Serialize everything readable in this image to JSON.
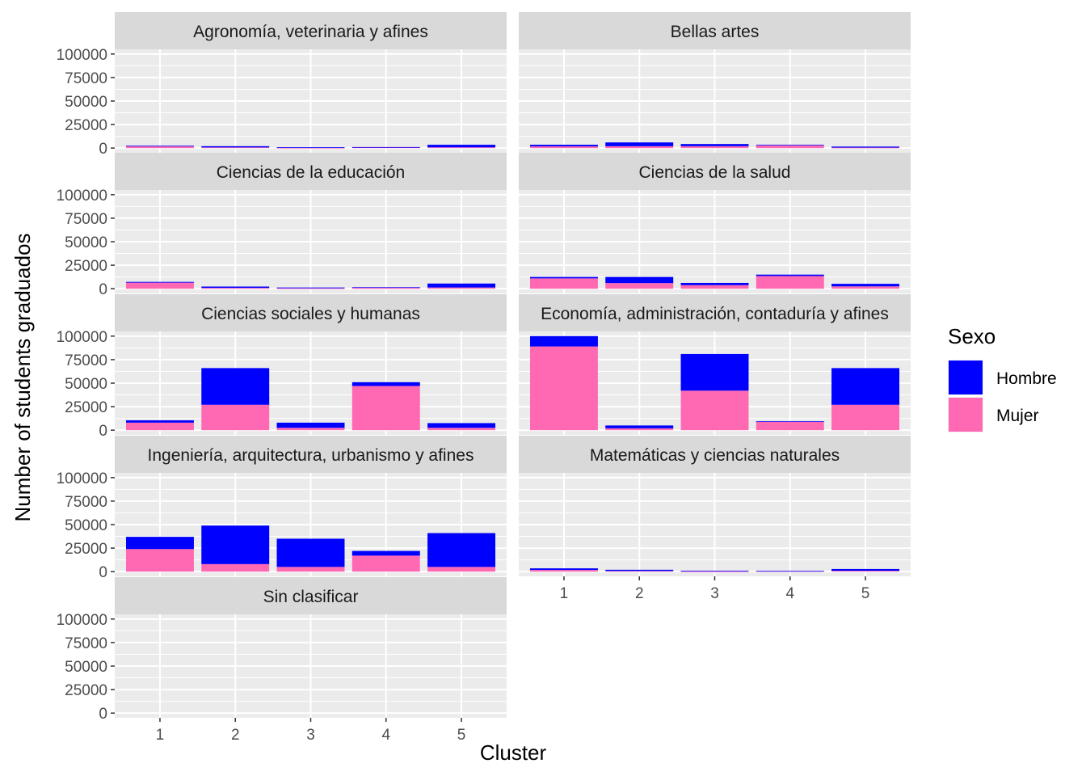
{
  "chart_data": {
    "type": "bar",
    "stacked": true,
    "facet": "wrap",
    "categories": [
      "1",
      "2",
      "3",
      "4",
      "5"
    ],
    "xlabel": "Cluster",
    "ylabel": "Number of students graduados",
    "ylim": [
      0,
      100000
    ],
    "yticks": [
      "0",
      "25000",
      "50000",
      "75000",
      "100000"
    ],
    "legend": {
      "title": "Sexo",
      "position": "right",
      "entries": [
        {
          "name": "Hombre",
          "color": "#0000FF"
        },
        {
          "name": "Mujer",
          "color": "#FF69B4"
        }
      ]
    },
    "colors": {
      "Hombre": "#0000FF",
      "Mujer": "#FF69B4",
      "panel": "#EBEBEB",
      "strip": "#D9D9D9",
      "grid": "#FFFFFF"
    },
    "panels": [
      {
        "title": "Agronomía, veterinaria y afines",
        "series": [
          {
            "name": "Mujer",
            "values": [
              2300,
              700,
              300,
              800,
              800
            ]
          },
          {
            "name": "Hombre",
            "values": [
              200,
              1300,
              700,
              300,
              2700
            ]
          }
        ]
      },
      {
        "title": "Bellas artes",
        "series": [
          {
            "name": "Mujer",
            "values": [
              1800,
              2000,
              2000,
              3000,
              500
            ]
          },
          {
            "name": "Hombre",
            "values": [
              1700,
              4000,
              2300,
              500,
              1100
            ]
          }
        ]
      },
      {
        "title": "Ciencias de la educación",
        "series": [
          {
            "name": "Mujer",
            "values": [
              6500,
              900,
              500,
              1300,
              1300
            ]
          },
          {
            "name": "Hombre",
            "values": [
              800,
              1400,
              800,
              300,
              4200
            ]
          }
        ]
      },
      {
        "title": "Ciencias de la salud",
        "series": [
          {
            "name": "Mujer",
            "values": [
              11000,
              6000,
              3800,
              13500,
              2500
            ]
          },
          {
            "name": "Hombre",
            "values": [
              1500,
              6500,
              2400,
              1500,
              2700
            ]
          }
        ]
      },
      {
        "title": "Ciencias sociales y humanas",
        "series": [
          {
            "name": "Mujer",
            "values": [
              8000,
              27000,
              2500,
              47000,
              2500
            ]
          },
          {
            "name": "Hombre",
            "values": [
              2500,
              39000,
              5500,
              4000,
              5000
            ]
          }
        ]
      },
      {
        "title": "Economía, administración, contaduría y afines",
        "series": [
          {
            "name": "Mujer",
            "values": [
              89000,
              2000,
              42000,
              9000,
              27000
            ]
          },
          {
            "name": "Hombre",
            "values": [
              11000,
              3000,
              39000,
              500,
              39000
            ]
          }
        ]
      },
      {
        "title": "Ingeniería, arquitectura, urbanismo y afines",
        "series": [
          {
            "name": "Mujer",
            "values": [
              24000,
              8000,
              5000,
              17000,
              5000
            ]
          },
          {
            "name": "Hombre",
            "values": [
              13000,
              41000,
              30000,
              5000,
              36000
            ]
          }
        ]
      },
      {
        "title": "Matemáticas y ciencias naturales",
        "series": [
          {
            "name": "Mujer",
            "values": [
              1800,
              700,
              300,
              500,
              900
            ]
          },
          {
            "name": "Hombre",
            "values": [
              1700,
              1300,
              700,
              300,
              1900
            ]
          }
        ]
      },
      {
        "title": "Sin clasificar",
        "series": [
          {
            "name": "Mujer",
            "values": [
              0,
              0,
              0,
              0,
              0
            ]
          },
          {
            "name": "Hombre",
            "values": [
              0,
              0,
              0,
              0,
              0
            ]
          }
        ]
      }
    ]
  }
}
